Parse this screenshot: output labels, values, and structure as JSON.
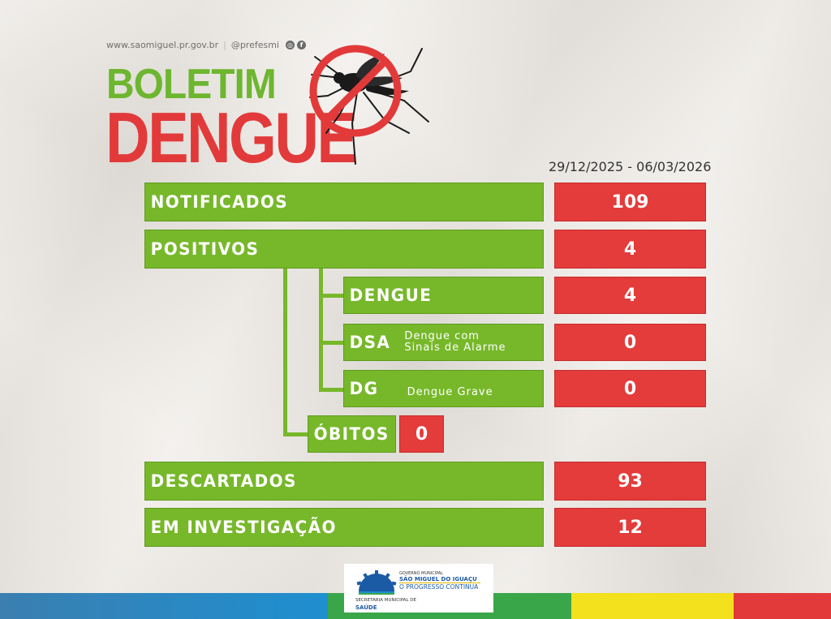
{
  "header": {
    "website": "www.saomiguel.pr.gov.br",
    "separator": "|",
    "social_handle": "@prefesmi",
    "social_icons": [
      "instagram-icon",
      "facebook-icon"
    ],
    "title_line1": "BOLETIM",
    "title_line2": "DENGUE",
    "period": "29/12/2025 - 06/03/2026"
  },
  "rows": {
    "notificados": {
      "label": "NOTIFICADOS",
      "value": "109"
    },
    "positivos": {
      "label": "POSITIVOS",
      "value": "4"
    },
    "dengue": {
      "label": "DENGUE",
      "value": "4"
    },
    "dsa": {
      "label": "DSA",
      "desc_line1": "Dengue com",
      "desc_line2": "Sinais de Alarme",
      "value": "0"
    },
    "dg": {
      "label": "DG",
      "desc": "Dengue Grave",
      "value": "0"
    },
    "obitos": {
      "label": "ÓBITOS",
      "value": "0"
    },
    "descartados": {
      "label": "DESCARTADOS",
      "value": "93"
    },
    "investigacao": {
      "label": "EM INVESTIGAÇÃO",
      "value": "12"
    }
  },
  "logo": {
    "line1": "GOVERNO MUNICIPAL",
    "line2": "SÃO MIGUEL DO IGUAÇU",
    "line3": "O PROGRESSO CONTINUA",
    "line4": "SECRETARIA MUNICIPAL DE",
    "line5": "SAÚDE"
  },
  "colors": {
    "green": "#77b82a",
    "red": "#e43b3b",
    "title_green": "#6db62f",
    "title_red": "#e23a3a",
    "stripes": [
      "#2f6fb6",
      "#1e8fd0",
      "#3aa64a",
      "#f2e11c",
      "#e23a3a"
    ]
  }
}
